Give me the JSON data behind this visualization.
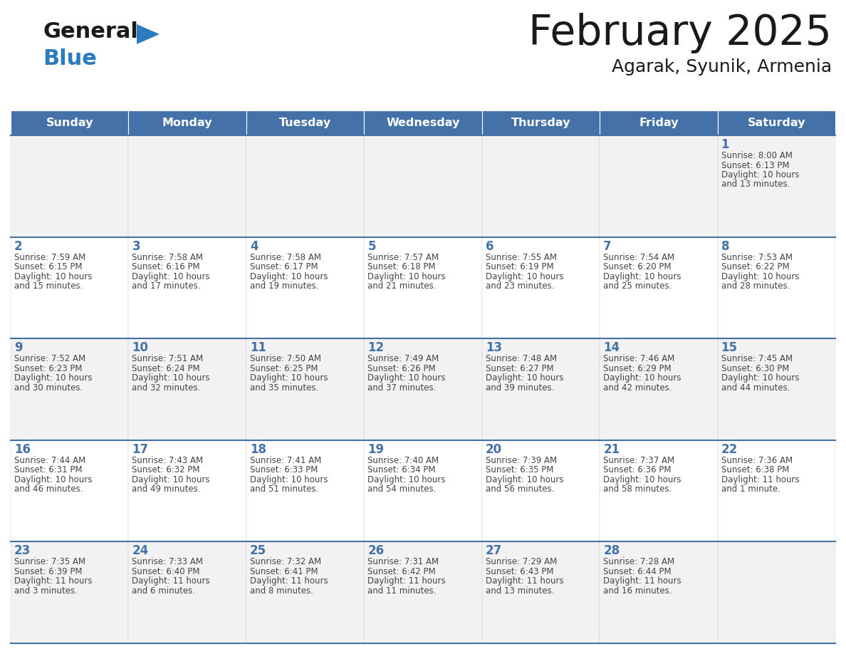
{
  "title": "February 2025",
  "subtitle": "Agarak, Syunik, Armenia",
  "days_of_week": [
    "Sunday",
    "Monday",
    "Tuesday",
    "Wednesday",
    "Thursday",
    "Friday",
    "Saturday"
  ],
  "header_bg": "#4472a8",
  "header_text": "#ffffff",
  "cell_bg_odd": "#f2f2f2",
  "cell_bg_even": "#ffffff",
  "separator_color": "#4472a8",
  "day_number_color": "#4472a8",
  "text_color": "#444444",
  "title_color": "#1a1a1a",
  "logo_black": "#1a1a1a",
  "logo_blue": "#2b7bbf",
  "weeks": [
    [
      null,
      null,
      null,
      null,
      null,
      null,
      1
    ],
    [
      2,
      3,
      4,
      5,
      6,
      7,
      8
    ],
    [
      9,
      10,
      11,
      12,
      13,
      14,
      15
    ],
    [
      16,
      17,
      18,
      19,
      20,
      21,
      22
    ],
    [
      23,
      24,
      25,
      26,
      27,
      28,
      null
    ]
  ],
  "cell_data": {
    "1": {
      "sunrise": "8:00 AM",
      "sunset": "6:13 PM",
      "daylight": "10 hours and 13 minutes."
    },
    "2": {
      "sunrise": "7:59 AM",
      "sunset": "6:15 PM",
      "daylight": "10 hours and 15 minutes."
    },
    "3": {
      "sunrise": "7:58 AM",
      "sunset": "6:16 PM",
      "daylight": "10 hours and 17 minutes."
    },
    "4": {
      "sunrise": "7:58 AM",
      "sunset": "6:17 PM",
      "daylight": "10 hours and 19 minutes."
    },
    "5": {
      "sunrise": "7:57 AM",
      "sunset": "6:18 PM",
      "daylight": "10 hours and 21 minutes."
    },
    "6": {
      "sunrise": "7:55 AM",
      "sunset": "6:19 PM",
      "daylight": "10 hours and 23 minutes."
    },
    "7": {
      "sunrise": "7:54 AM",
      "sunset": "6:20 PM",
      "daylight": "10 hours and 25 minutes."
    },
    "8": {
      "sunrise": "7:53 AM",
      "sunset": "6:22 PM",
      "daylight": "10 hours and 28 minutes."
    },
    "9": {
      "sunrise": "7:52 AM",
      "sunset": "6:23 PM",
      "daylight": "10 hours and 30 minutes."
    },
    "10": {
      "sunrise": "7:51 AM",
      "sunset": "6:24 PM",
      "daylight": "10 hours and 32 minutes."
    },
    "11": {
      "sunrise": "7:50 AM",
      "sunset": "6:25 PM",
      "daylight": "10 hours and 35 minutes."
    },
    "12": {
      "sunrise": "7:49 AM",
      "sunset": "6:26 PM",
      "daylight": "10 hours and 37 minutes."
    },
    "13": {
      "sunrise": "7:48 AM",
      "sunset": "6:27 PM",
      "daylight": "10 hours and 39 minutes."
    },
    "14": {
      "sunrise": "7:46 AM",
      "sunset": "6:29 PM",
      "daylight": "10 hours and 42 minutes."
    },
    "15": {
      "sunrise": "7:45 AM",
      "sunset": "6:30 PM",
      "daylight": "10 hours and 44 minutes."
    },
    "16": {
      "sunrise": "7:44 AM",
      "sunset": "6:31 PM",
      "daylight": "10 hours and 46 minutes."
    },
    "17": {
      "sunrise": "7:43 AM",
      "sunset": "6:32 PM",
      "daylight": "10 hours and 49 minutes."
    },
    "18": {
      "sunrise": "7:41 AM",
      "sunset": "6:33 PM",
      "daylight": "10 hours and 51 minutes."
    },
    "19": {
      "sunrise": "7:40 AM",
      "sunset": "6:34 PM",
      "daylight": "10 hours and 54 minutes."
    },
    "20": {
      "sunrise": "7:39 AM",
      "sunset": "6:35 PM",
      "daylight": "10 hours and 56 minutes."
    },
    "21": {
      "sunrise": "7:37 AM",
      "sunset": "6:36 PM",
      "daylight": "10 hours and 58 minutes."
    },
    "22": {
      "sunrise": "7:36 AM",
      "sunset": "6:38 PM",
      "daylight": "11 hours and 1 minute."
    },
    "23": {
      "sunrise": "7:35 AM",
      "sunset": "6:39 PM",
      "daylight": "11 hours and 3 minutes."
    },
    "24": {
      "sunrise": "7:33 AM",
      "sunset": "6:40 PM",
      "daylight": "11 hours and 6 minutes."
    },
    "25": {
      "sunrise": "7:32 AM",
      "sunset": "6:41 PM",
      "daylight": "11 hours and 8 minutes."
    },
    "26": {
      "sunrise": "7:31 AM",
      "sunset": "6:42 PM",
      "daylight": "11 hours and 11 minutes."
    },
    "27": {
      "sunrise": "7:29 AM",
      "sunset": "6:43 PM",
      "daylight": "11 hours and 13 minutes."
    },
    "28": {
      "sunrise": "7:28 AM",
      "sunset": "6:44 PM",
      "daylight": "11 hours and 16 minutes."
    }
  }
}
